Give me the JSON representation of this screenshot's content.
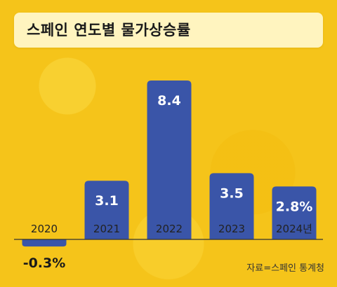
{
  "title": "스페인 연도별 물가상승률",
  "source": "자료=스페인 통계청",
  "colors": {
    "bar": "#3a55a8",
    "background": "#f5c41a",
    "axis": "#333333"
  },
  "chart_data": {
    "type": "bar",
    "title": "스페인 연도별 물가상승률",
    "categories": [
      "2020",
      "2021",
      "2022",
      "2023",
      "2024년"
    ],
    "values": [
      -0.3,
      3.1,
      8.4,
      3.5,
      2.8
    ],
    "value_labels": [
      "-0.3%",
      "3.1",
      "8.4",
      "3.5",
      "2.8%"
    ],
    "xlabel": "",
    "ylabel": "",
    "ylim": [
      -0.5,
      9.0
    ],
    "grid": false,
    "legend": "none"
  }
}
